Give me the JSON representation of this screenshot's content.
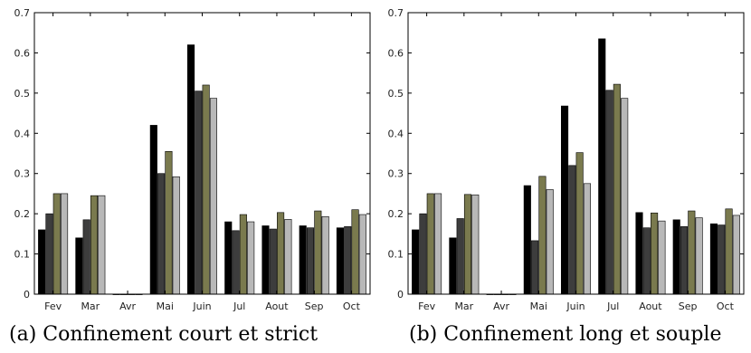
{
  "chart_data": [
    {
      "type": "bar",
      "caption": "(a) Confinement court et strict",
      "categories": [
        "Fev",
        "Mar",
        "Avr",
        "Mai",
        "Juin",
        "Jul",
        "Aout",
        "Sep",
        "Oct"
      ],
      "ylim": [
        0,
        0.7
      ],
      "yticks": [
        "0",
        "0.1",
        "0.2",
        "0.3",
        "0.4",
        "0.5",
        "0.6",
        "0.7"
      ],
      "grid": false,
      "series": [
        {
          "color": "#000000",
          "values": [
            0.16,
            0.14,
            0.0,
            0.42,
            0.62,
            0.18,
            0.17,
            0.17,
            0.165
          ]
        },
        {
          "color": "#3d3d3d",
          "values": [
            0.2,
            0.185,
            0.0,
            0.3,
            0.505,
            0.158,
            0.162,
            0.165,
            0.168
          ]
        },
        {
          "color": "#7a7a4e",
          "values": [
            0.25,
            0.245,
            0.0,
            0.355,
            0.52,
            0.198,
            0.203,
            0.207,
            0.21
          ]
        },
        {
          "color": "#b8b8b8",
          "values": [
            0.25,
            0.245,
            0.0,
            0.292,
            0.487,
            0.18,
            0.186,
            0.193,
            0.198
          ]
        }
      ]
    },
    {
      "type": "bar",
      "caption": "(b) Confinement long et souple",
      "categories": [
        "Fev",
        "Mar",
        "Avr",
        "Mai",
        "Juin",
        "Jul",
        "Aout",
        "Sep",
        "Oct"
      ],
      "ylim": [
        0,
        0.7
      ],
      "yticks": [
        "0",
        "0.1",
        "0.2",
        "0.3",
        "0.4",
        "0.5",
        "0.6",
        "0.7"
      ],
      "grid": false,
      "series": [
        {
          "color": "#000000",
          "values": [
            0.16,
            0.14,
            0.0,
            0.27,
            0.468,
            0.635,
            0.203,
            0.185,
            0.175
          ]
        },
        {
          "color": "#3d3d3d",
          "values": [
            0.2,
            0.188,
            0.0,
            0.133,
            0.32,
            0.507,
            0.165,
            0.168,
            0.172
          ]
        },
        {
          "color": "#7a7a4e",
          "values": [
            0.25,
            0.248,
            0.0,
            0.293,
            0.352,
            0.522,
            0.202,
            0.207,
            0.212
          ]
        },
        {
          "color": "#b8b8b8",
          "values": [
            0.25,
            0.247,
            0.0,
            0.26,
            0.275,
            0.487,
            0.182,
            0.19,
            0.196
          ]
        }
      ]
    }
  ]
}
